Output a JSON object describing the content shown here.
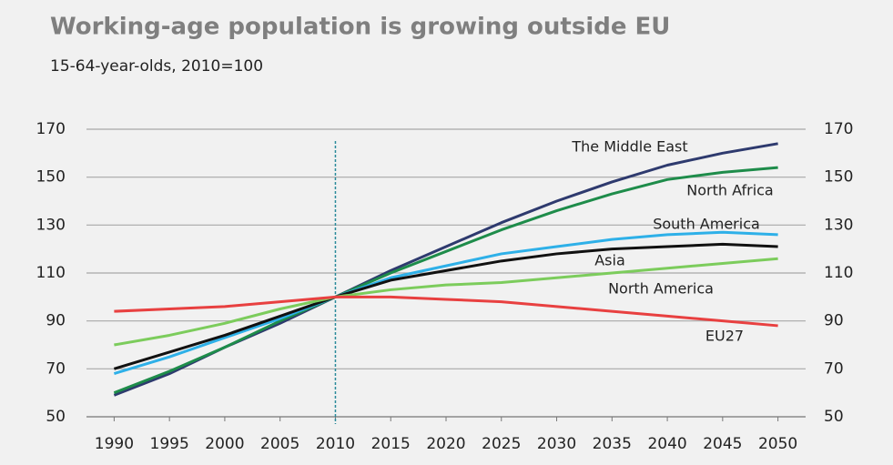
{
  "chart_data": {
    "type": "line",
    "title": "Working-age population is growing outside EU",
    "subtitle": "15-64-year-olds, 2010=100",
    "x": [
      1990,
      1995,
      2000,
      2005,
      2010,
      2015,
      2020,
      2025,
      2030,
      2035,
      2040,
      2045,
      2050
    ],
    "xlim": [
      1987.5,
      2052.5
    ],
    "xticks": [
      1990,
      1995,
      2000,
      2005,
      2010,
      2015,
      2020,
      2025,
      2030,
      2035,
      2040,
      2045,
      2050
    ],
    "ylim": [
      50,
      170
    ],
    "yticks": [
      50,
      70,
      90,
      110,
      130,
      150,
      170
    ],
    "y2lim": [
      50,
      170
    ],
    "y2ticks": [
      50,
      70,
      90,
      110,
      130,
      150,
      170
    ],
    "grid": true,
    "vline": 2010,
    "series": [
      {
        "name": "The Middle East",
        "color": "#2e3a6e",
        "values": [
          59,
          68,
          79,
          89,
          100,
          111,
          121,
          131,
          140,
          148,
          155,
          160,
          164
        ]
      },
      {
        "name": "North Africa",
        "color": "#1e8c4a",
        "values": [
          60,
          69,
          79,
          90,
          100,
          110,
          119,
          128,
          136,
          143,
          149,
          152,
          154
        ]
      },
      {
        "name": "South America",
        "color": "#2eb0e8",
        "values": [
          68,
          75,
          83,
          91,
          100,
          108,
          113,
          118,
          121,
          124,
          126,
          127,
          126
        ]
      },
      {
        "name": "Asia",
        "color": "#111111",
        "values": [
          70,
          77,
          84,
          92,
          100,
          107,
          111,
          115,
          118,
          120,
          121,
          122,
          121
        ]
      },
      {
        "name": "North America",
        "color": "#7ccc5c",
        "values": [
          80,
          84,
          89,
          95,
          100,
          103,
          105,
          106,
          108,
          110,
          112,
          114,
          116
        ]
      },
      {
        "name": "EU27",
        "color": "#e84040",
        "values": [
          94,
          95,
          96,
          98,
          100,
          100,
          99,
          98,
          96,
          94,
          92,
          90,
          88
        ]
      }
    ]
  }
}
